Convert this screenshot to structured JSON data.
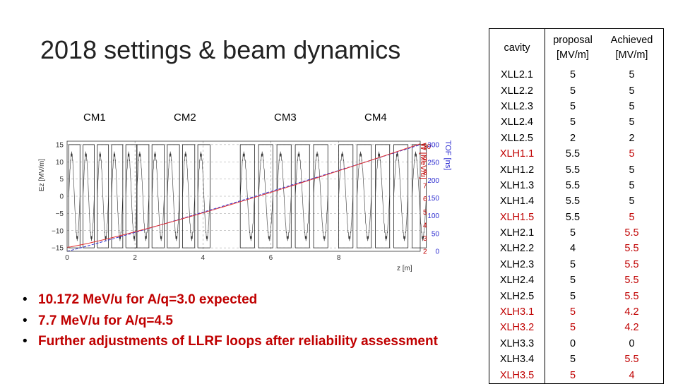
{
  "slide": {
    "title": "2018 settings & beam dynamics",
    "cryomodules": [
      "CM1",
      "CM2",
      "CM3",
      "CM4"
    ]
  },
  "plot_labels": {
    "left_axis": "Ez [MV/m]",
    "right_axis_1": "W [MeV/u]",
    "right_axis_2": "TOF [ns]",
    "x_axis": "z [m]",
    "x_ticks": [
      "0",
      "2",
      "4",
      "6",
      "8"
    ],
    "left_ticks": [
      "15",
      "10",
      "5",
      "0",
      "−5",
      "−10",
      "−15"
    ],
    "right_ticks_1": [
      "10",
      "9",
      "8",
      "7",
      "6",
      "5",
      "4",
      "3",
      "2"
    ],
    "right_ticks_2": [
      "300",
      "250",
      "200",
      "150",
      "100",
      "50",
      "0"
    ]
  },
  "bullets": [
    "10.172 MeV/u for A/q=3.0 expected",
    "7.7 MeV/u for A/q=4.5",
    "Further adjustments of LLRF loops after reliability assessment"
  ],
  "colors": {
    "red_text": "#c00000",
    "energy_line": "#e23030",
    "tof_line": "#3030d0"
  },
  "table": {
    "headers": [
      [
        "cavity"
      ],
      [
        "proposal",
        "[MV/m]"
      ],
      [
        "Achieved",
        "[MV/m]"
      ]
    ],
    "rows": [
      {
        "cavity": "XLL2.1",
        "proposal": "5",
        "achieved": "5",
        "style": "normal"
      },
      {
        "cavity": "XLL2.2",
        "proposal": "5",
        "achieved": "5",
        "style": "normal"
      },
      {
        "cavity": "XLL2.3",
        "proposal": "5",
        "achieved": "5",
        "style": "normal"
      },
      {
        "cavity": "XLL2.4",
        "proposal": "5",
        "achieved": "5",
        "style": "normal"
      },
      {
        "cavity": "XLL2.5",
        "proposal": "2",
        "achieved": "2",
        "style": "normal"
      },
      {
        "cavity": "XLH1.1",
        "proposal": "5.5",
        "achieved": "5",
        "style": "red-cav-red-ach"
      },
      {
        "cavity": "XLH1.2",
        "proposal": "5.5",
        "achieved": "5",
        "style": "normal"
      },
      {
        "cavity": "XLH1.3",
        "proposal": "5.5",
        "achieved": "5",
        "style": "normal"
      },
      {
        "cavity": "XLH1.4",
        "proposal": "5.5",
        "achieved": "5",
        "style": "normal"
      },
      {
        "cavity": "XLH1.5",
        "proposal": "5.5",
        "achieved": "5",
        "style": "red-cav-red-ach"
      },
      {
        "cavity": "XLH2.1",
        "proposal": "5",
        "achieved": "5.5",
        "style": "red-ach"
      },
      {
        "cavity": "XLH2.2",
        "proposal": "4",
        "achieved": "5.5",
        "style": "red-ach"
      },
      {
        "cavity": "XLH2.3",
        "proposal": "5",
        "achieved": "5.5",
        "style": "red-ach"
      },
      {
        "cavity": "XLH2.4",
        "proposal": "5",
        "achieved": "5.5",
        "style": "red-ach"
      },
      {
        "cavity": "XLH2.5",
        "proposal": "5",
        "achieved": "5.5",
        "style": "red-ach"
      },
      {
        "cavity": "XLH3.1",
        "proposal": "5",
        "achieved": "4.2",
        "style": "red-all"
      },
      {
        "cavity": "XLH3.2",
        "proposal": "5",
        "achieved": "4.2",
        "style": "red-all"
      },
      {
        "cavity": "XLH3.3",
        "proposal": "0",
        "achieved": "0",
        "style": "bold-all"
      },
      {
        "cavity": "XLH3.4",
        "proposal": "5",
        "achieved": "5.5",
        "style": "red-ach"
      },
      {
        "cavity": "XLH3.5",
        "proposal": "5",
        "achieved": "4",
        "style": "red-all"
      }
    ]
  }
}
